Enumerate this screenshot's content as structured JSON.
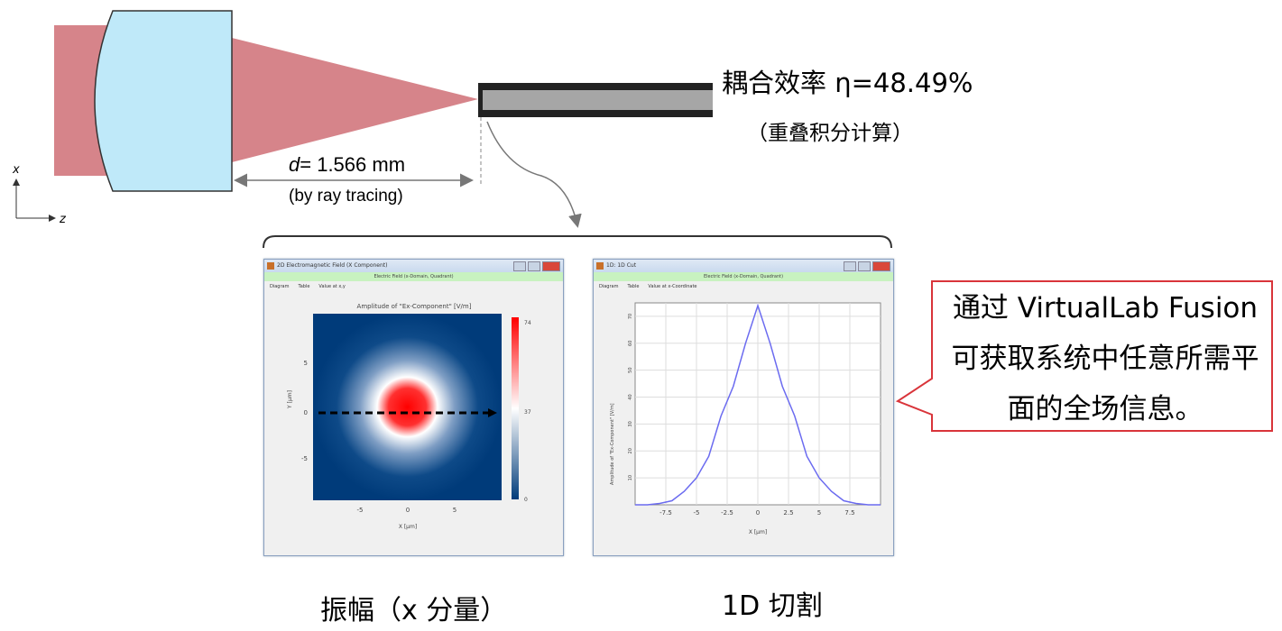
{
  "setup": {
    "distance_label_var": "d",
    "distance_label_value": "= 1.566 mm",
    "distance_method": "(by ray tracing)",
    "axis_x": "x",
    "axis_z": "z",
    "efficiency": "耦合效率 η=48.49%",
    "efficiency_method": "（重叠积分计算）",
    "colors": {
      "beam": "#d6848a",
      "lens": "#bfe9f9",
      "fiber_core": "#a6a6a6",
      "callout_border": "#d9343a"
    }
  },
  "window_2d": {
    "title": "2D Electromagnetic Field (X Component)",
    "subtitle": "Electric Field (x-Domain, Quadrant)",
    "menu": [
      "Diagram",
      "Table",
      "Value at x,y"
    ],
    "plot_title": "Amplitude of \"Ex-Component\" [V/m]",
    "x_label": "X [µm]",
    "y_label": "Y [µm]",
    "x_ticks": [
      "-5",
      "0",
      "5"
    ],
    "y_ticks": [
      "5",
      "0",
      "-5"
    ],
    "colorbar_ticks": [
      "74",
      "37",
      "0"
    ],
    "colormap": [
      "#003b7a",
      "#ffffff",
      "#ff0000"
    ]
  },
  "window_1d": {
    "title": "1D: 1D Cut",
    "subtitle": "Electric Field (x-Domain, Quadrant)",
    "menu": [
      "Diagram",
      "Table",
      "Value at x-Coordinate"
    ],
    "x_label": "X [µm]",
    "y_label": "Amplitude of \"Ex-Component\" [V/m]"
  },
  "chart_data": {
    "type": "line",
    "x": [
      -10,
      -9,
      -8,
      -7,
      -6,
      -5,
      -4,
      -3,
      -2,
      -1,
      0,
      1,
      2,
      3,
      4,
      5,
      6,
      7,
      8,
      9,
      10
    ],
    "y": [
      0,
      0,
      0.5,
      1.5,
      5,
      10,
      18,
      33,
      44,
      60,
      74,
      60,
      44,
      33,
      18,
      10,
      5,
      1.5,
      0.5,
      0,
      0
    ],
    "xlim": [
      -10,
      10
    ],
    "ylim": [
      0,
      75
    ],
    "x_ticks": [
      "-7.5",
      "-5",
      "-2.5",
      "0",
      "2.5",
      "5",
      "7.5"
    ],
    "y_ticks": [
      "10",
      "20",
      "30",
      "40",
      "50",
      "60",
      "70"
    ],
    "grid": true,
    "line_color": "#6b6bf0"
  },
  "callout": {
    "text": "通过  VirtualLab Fusion 可获取系统中任意所需平面的全场信息。"
  },
  "captions": {
    "amplitude": "振幅（x  分量）",
    "cut": "1D  切割"
  }
}
